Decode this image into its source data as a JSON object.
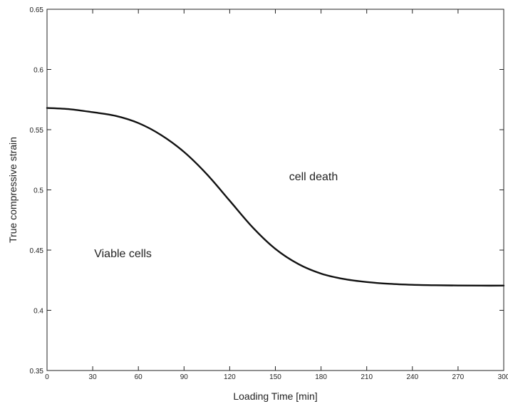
{
  "chart_data": {
    "type": "line",
    "title": "",
    "xlabel": "Loading Time [min]",
    "ylabel": "True compressive strain",
    "xlim": [
      0,
      300
    ],
    "ylim": [
      0.35,
      0.65
    ],
    "grid": false,
    "legend": "none",
    "x_ticks": [
      0,
      30,
      60,
      90,
      120,
      150,
      180,
      210,
      240,
      270,
      300
    ],
    "y_ticks": [
      0.35,
      0.4,
      0.45,
      0.5,
      0.55,
      0.6,
      0.65
    ],
    "x_tick_labels": [
      "0",
      "30",
      "60",
      "90",
      "120",
      "150",
      "180",
      "210",
      "240",
      "270",
      "300"
    ],
    "y_tick_labels": [
      "0.35",
      "0.4",
      "0.45",
      "0.5",
      "0.55",
      "0.6",
      "0.65"
    ],
    "series": [
      {
        "color": "#111111",
        "x": [
          0,
          15,
          30,
          45,
          60,
          75,
          90,
          105,
          120,
          135,
          150,
          165,
          180,
          195,
          210,
          225,
          240,
          255,
          270,
          285,
          300
        ],
        "y": [
          0.568,
          0.567,
          0.5645,
          0.5615,
          0.5555,
          0.5455,
          0.5315,
          0.513,
          0.491,
          0.469,
          0.451,
          0.4385,
          0.4305,
          0.426,
          0.4235,
          0.422,
          0.4212,
          0.4208,
          0.4206,
          0.4205,
          0.4205
        ]
      }
    ],
    "annotations": [
      {
        "text": "cell death",
        "x": 159,
        "y": 0.508
      },
      {
        "text": "Viable cells",
        "x": 31,
        "y": 0.444
      }
    ]
  }
}
